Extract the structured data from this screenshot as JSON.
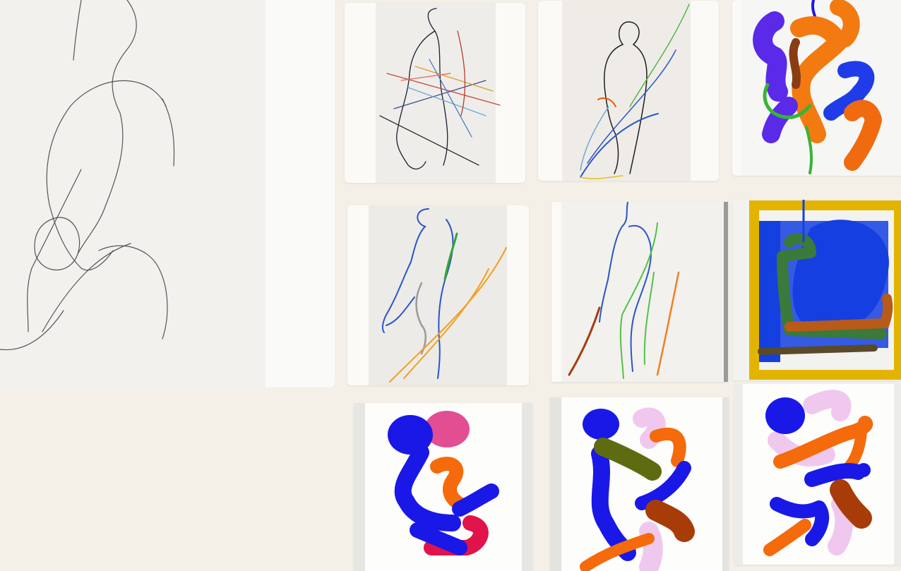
{
  "gallery": {
    "items": [
      {
        "icon": "pencil-figure-sketch-artwork"
      },
      {
        "icon": "line-figure-multicolor-artwork"
      },
      {
        "icon": "standing-figure-blue-green-artwork"
      },
      {
        "icon": "abstract-blue-orange-shapes-artwork"
      },
      {
        "icon": "figure-blue-orange-lines-artwork"
      },
      {
        "icon": "figure-blue-green-orange-lines-artwork"
      },
      {
        "icon": "abstract-blue-yellow-frame-artwork"
      },
      {
        "icon": "abstract-blue-pink-red-artwork"
      },
      {
        "icon": "abstract-blue-olive-brown-artwork"
      },
      {
        "icon": "abstract-blue-orange-pink-artwork"
      }
    ]
  },
  "colors": {
    "page_background": "#f4f0e8",
    "paper": "#f7f5f1",
    "ink_blue": "#1a1ae6",
    "ink_orange": "#f26b0f",
    "ink_green": "#35b535",
    "ink_pink": "#e9b5e4",
    "ink_red": "#e0134b",
    "ink_olive": "#5f6b10",
    "ink_brown": "#a83c08",
    "ink_yellow": "#e2b400"
  }
}
